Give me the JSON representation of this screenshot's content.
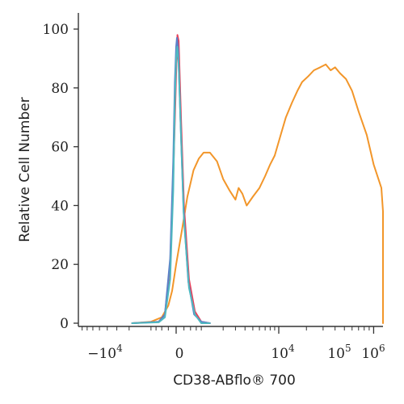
{
  "chart_data": {
    "type": "line",
    "xlabel": "CD38-ABflo® 700",
    "ylabel": "Relative Cell Number",
    "x_scale": "biexponential",
    "x_tick_labels": [
      {
        "base": "−10",
        "exp": "4"
      },
      {
        "base": "0",
        "exp": ""
      },
      {
        "base": "10",
        "exp": "4"
      },
      {
        "base": "10",
        "exp": "5"
      },
      {
        "base": "10",
        "exp": "6"
      }
    ],
    "y_ticks": [
      "0",
      "20",
      "40",
      "60",
      "80",
      "100"
    ],
    "ylim": [
      0,
      100
    ],
    "grid": false,
    "legend": "none",
    "series": [
      {
        "color": "#F2962A",
        "points": [
          [
            -1800,
            0
          ],
          [
            -800,
            0.5
          ],
          [
            -400,
            2
          ],
          [
            -200,
            6
          ],
          [
            -100,
            11
          ],
          [
            0,
            20
          ],
          [
            150,
            32
          ],
          [
            300,
            43
          ],
          [
            500,
            52
          ],
          [
            700,
            56
          ],
          [
            900,
            58
          ],
          [
            1200,
            58
          ],
          [
            1600,
            55
          ],
          [
            2000,
            49
          ],
          [
            2500,
            45
          ],
          [
            3000,
            42
          ],
          [
            3300,
            46
          ],
          [
            3700,
            44
          ],
          [
            4200,
            40
          ],
          [
            5000,
            43
          ],
          [
            6000,
            46
          ],
          [
            7000,
            50
          ],
          [
            8000,
            54
          ],
          [
            9000,
            57
          ],
          [
            10500,
            64
          ],
          [
            12000,
            70
          ],
          [
            14000,
            75
          ],
          [
            16000,
            79
          ],
          [
            18000,
            82
          ],
          [
            21000,
            84
          ],
          [
            24000,
            86
          ],
          [
            28000,
            87
          ],
          [
            32000,
            88
          ],
          [
            36000,
            86
          ],
          [
            40000,
            87
          ],
          [
            45000,
            85
          ],
          [
            52000,
            83
          ],
          [
            60000,
            79
          ],
          [
            70000,
            72
          ],
          [
            85000,
            64
          ],
          [
            100000,
            54
          ],
          [
            120000,
            46
          ],
          [
            140000,
            38
          ],
          [
            160000,
            32
          ],
          [
            180000,
            29
          ],
          [
            200000,
            30
          ],
          [
            220000,
            32
          ],
          [
            250000,
            31
          ],
          [
            280000,
            28
          ],
          [
            320000,
            24
          ],
          [
            380000,
            18
          ],
          [
            450000,
            11
          ],
          [
            550000,
            5
          ],
          [
            650000,
            1
          ],
          [
            800000,
            0
          ]
        ]
      },
      {
        "color": "#E8415A",
        "points": [
          [
            -1800,
            0
          ],
          [
            -500,
            0.5
          ],
          [
            -300,
            3
          ],
          [
            -150,
            20
          ],
          [
            -70,
            50
          ],
          [
            -20,
            75
          ],
          [
            10,
            90
          ],
          [
            30,
            98
          ],
          [
            60,
            96
          ],
          [
            120,
            70
          ],
          [
            200,
            40
          ],
          [
            350,
            15
          ],
          [
            550,
            4
          ],
          [
            800,
            0.5
          ],
          [
            1200,
            0
          ]
        ]
      },
      {
        "color": "#5B7FC8",
        "points": [
          [
            -1800,
            0
          ],
          [
            -500,
            0.5
          ],
          [
            -300,
            3
          ],
          [
            -150,
            22
          ],
          [
            -70,
            55
          ],
          [
            -30,
            82
          ],
          [
            0,
            94
          ],
          [
            20,
            97
          ],
          [
            50,
            93
          ],
          [
            110,
            68
          ],
          [
            190,
            38
          ],
          [
            330,
            14
          ],
          [
            520,
            3
          ],
          [
            800,
            0.5
          ],
          [
            1200,
            0
          ]
        ]
      },
      {
        "color": "#4FB8C0",
        "points": [
          [
            -1800,
            0
          ],
          [
            -500,
            0.3
          ],
          [
            -300,
            2
          ],
          [
            -150,
            15
          ],
          [
            -70,
            45
          ],
          [
            -30,
            75
          ],
          [
            0,
            90
          ],
          [
            25,
            94
          ],
          [
            60,
            88
          ],
          [
            120,
            64
          ],
          [
            200,
            35
          ],
          [
            350,
            12
          ],
          [
            550,
            3
          ],
          [
            800,
            0
          ],
          [
            1200,
            0
          ]
        ]
      }
    ]
  }
}
